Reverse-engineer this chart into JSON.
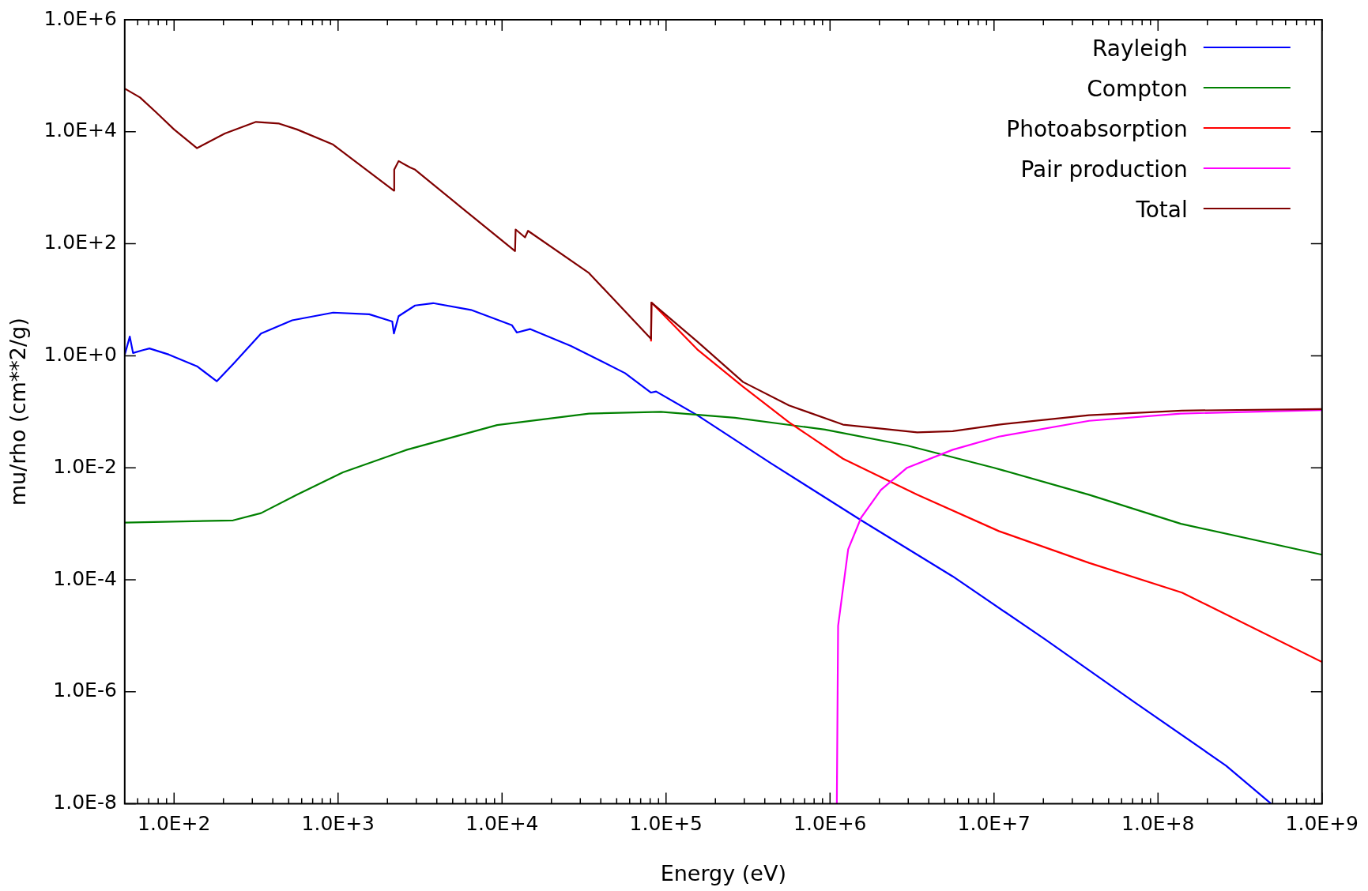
{
  "chart_data": {
    "type": "line",
    "xlabel": "Energy (eV)",
    "ylabel": "mu/rho (cm**2/g)",
    "log": "xy",
    "grid": false,
    "legend": "top right",
    "marker": "none",
    "line_style": "solid",
    "xlim": [
      50,
      1000000000.0
    ],
    "ylim": [
      1e-08,
      1000000.0
    ],
    "xticks": [
      {
        "value": 60,
        "label": null
      },
      {
        "value": 70,
        "label": null
      },
      {
        "value": 80,
        "label": null
      },
      {
        "value": 90,
        "label": null
      },
      {
        "value": 100,
        "label": "1.0E+2"
      },
      {
        "value": 200,
        "label": null
      },
      {
        "value": 300,
        "label": null
      },
      {
        "value": 400,
        "label": null
      },
      {
        "value": 500,
        "label": null
      },
      {
        "value": 600,
        "label": null
      },
      {
        "value": 700,
        "label": null
      },
      {
        "value": 800,
        "label": null
      },
      {
        "value": 900,
        "label": null
      },
      {
        "value": 1000,
        "label": "1.0E+3"
      },
      {
        "value": 2000,
        "label": null
      },
      {
        "value": 3000,
        "label": null
      },
      {
        "value": 4000,
        "label": null
      },
      {
        "value": 5000,
        "label": null
      },
      {
        "value": 6000,
        "label": null
      },
      {
        "value": 7000,
        "label": null
      },
      {
        "value": 8000,
        "label": null
      },
      {
        "value": 9000,
        "label": null
      },
      {
        "value": 10000,
        "label": "1.0E+4"
      },
      {
        "value": 20000,
        "label": null
      },
      {
        "value": 30000,
        "label": null
      },
      {
        "value": 40000,
        "label": null
      },
      {
        "value": 50000,
        "label": null
      },
      {
        "value": 60000,
        "label": null
      },
      {
        "value": 70000,
        "label": null
      },
      {
        "value": 80000,
        "label": null
      },
      {
        "value": 90000,
        "label": null
      },
      {
        "value": 100000,
        "label": "1.0E+5"
      },
      {
        "value": 200000,
        "label": null
      },
      {
        "value": 300000,
        "label": null
      },
      {
        "value": 400000,
        "label": null
      },
      {
        "value": 500000,
        "label": null
      },
      {
        "value": 600000,
        "label": null
      },
      {
        "value": 700000,
        "label": null
      },
      {
        "value": 800000,
        "label": null
      },
      {
        "value": 900000,
        "label": null
      },
      {
        "value": 1000000,
        "label": "1.0E+6"
      },
      {
        "value": 2000000,
        "label": null
      },
      {
        "value": 3000000,
        "label": null
      },
      {
        "value": 4000000,
        "label": null
      },
      {
        "value": 5000000,
        "label": null
      },
      {
        "value": 6000000,
        "label": null
      },
      {
        "value": 7000000,
        "label": null
      },
      {
        "value": 8000000,
        "label": null
      },
      {
        "value": 9000000,
        "label": null
      },
      {
        "value": 10000000,
        "label": "1.0E+7"
      },
      {
        "value": 20000000,
        "label": null
      },
      {
        "value": 30000000,
        "label": null
      },
      {
        "value": 40000000,
        "label": null
      },
      {
        "value": 50000000,
        "label": null
      },
      {
        "value": 60000000,
        "label": null
      },
      {
        "value": 70000000,
        "label": null
      },
      {
        "value": 80000000,
        "label": null
      },
      {
        "value": 90000000,
        "label": null
      },
      {
        "value": 100000000,
        "label": "1.0E+8"
      },
      {
        "value": 200000000,
        "label": null
      },
      {
        "value": 300000000,
        "label": null
      },
      {
        "value": 400000000,
        "label": null
      },
      {
        "value": 500000000,
        "label": null
      },
      {
        "value": 600000000,
        "label": null
      },
      {
        "value": 700000000,
        "label": null
      },
      {
        "value": 800000000,
        "label": null
      },
      {
        "value": 900000000,
        "label": null
      },
      {
        "value": 1000000000,
        "label": "1.0E+9"
      }
    ],
    "yticks": [
      {
        "value": 1e-08,
        "label": "1.0E-8"
      },
      {
        "value": 1e-06,
        "label": "1.0E-6"
      },
      {
        "value": 0.0001,
        "label": "1.0E-4"
      },
      {
        "value": 0.01,
        "label": "1.0E-2"
      },
      {
        "value": 1,
        "label": "1.0E+0"
      },
      {
        "value": 100,
        "label": "1.0E+2"
      },
      {
        "value": 10000,
        "label": "1.0E+4"
      },
      {
        "value": 1000000,
        "label": "1.0E+6"
      }
    ],
    "series": [
      {
        "name": "Rayleigh",
        "color": "#0000ff",
        "x": [
          50,
          53.7,
          56.2,
          64.6,
          70.8,
          93,
          138,
          182,
          229,
          339,
          525,
          933,
          1550,
          2140,
          2190,
          2340,
          2950,
          3800,
          6460,
          11500,
          12300,
          14800,
          26300,
          56200,
          81000,
          87000,
          155000,
          437000,
          1550000,
          5600000,
          20400000,
          72000000,
          260000000,
          490000000
        ],
        "values": [
          1.04,
          2.2,
          1.12,
          1.26,
          1.35,
          1.05,
          0.65,
          0.35,
          0.71,
          2.5,
          4.3,
          5.9,
          5.5,
          4.1,
          2.5,
          5.1,
          7.9,
          8.7,
          6.6,
          3.5,
          2.6,
          3.0,
          1.5,
          0.49,
          0.22,
          0.23,
          0.087,
          0.012,
          0.00115,
          0.000115,
          8.7e-06,
          6.5e-07,
          4.8e-08,
          1e-08
        ]
      },
      {
        "name": "Compton",
        "color": "#008000",
        "x": [
          50,
          229,
          339,
          562,
          1070,
          2630,
          9330,
          33900,
          93000,
          263000,
          933000,
          2950000,
          10000000,
          38000000,
          138000000,
          1000000000
        ],
        "values": [
          0.00105,
          0.00115,
          0.00155,
          0.0033,
          0.0083,
          0.021,
          0.058,
          0.093,
          0.1,
          0.078,
          0.048,
          0.025,
          0.01,
          0.0033,
          0.001,
          0.00028
        ]
      },
      {
        "name": "Photoabsorption",
        "color": "#ff0000",
        "x": [
          81000,
          81500,
          155000,
          295000,
          562000,
          1200000,
          3400000,
          10700000,
          38000000,
          140000000,
          1000000000
        ],
        "values": [
          1.8,
          8.9,
          1.3,
          0.28,
          0.065,
          0.0145,
          0.0033,
          0.00074,
          0.0002,
          5.9e-05,
          3.4e-06
        ]
      },
      {
        "name": "Pair production",
        "color": "#ff00ff",
        "x": [
          1100000,
          1120000,
          1290000,
          1550000,
          2040000,
          2950000,
          5600000,
          10700000,
          38000000,
          138000000,
          1000000000
        ],
        "values": [
          1e-08,
          1.5e-05,
          0.00035,
          0.0013,
          0.004,
          0.01,
          0.021,
          0.036,
          0.069,
          0.093,
          0.107
        ]
      },
      {
        "name": "Total",
        "color": "#800000",
        "x": [
          50,
          62,
          78,
          100,
          138,
          204,
          316,
          437,
          562,
          933,
          2190,
          2200,
          2340,
          2750,
          2950,
          5620,
          12000,
          12100,
          13800,
          14400,
          33900,
          81000,
          81500,
          155000,
          295000,
          562000,
          1200000,
          3400000,
          5600000,
          10700000,
          38000000,
          140000000,
          1000000000
        ],
        "values": [
          59000,
          41000,
          22000,
          11000,
          5100,
          9300,
          15000,
          14000,
          11000,
          5900,
          890,
          2100,
          3000,
          2300,
          2100,
          450,
          74,
          180,
          130,
          170,
          30,
          2.0,
          8.9,
          1.8,
          0.34,
          0.13,
          0.059,
          0.043,
          0.045,
          0.059,
          0.087,
          0.105,
          0.112
        ]
      }
    ]
  }
}
